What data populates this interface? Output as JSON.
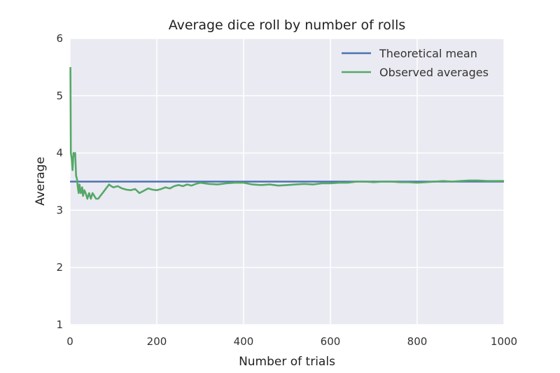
{
  "chart_data": {
    "type": "line",
    "title": "Average dice roll by number of rolls",
    "xlabel": "Number of trials",
    "ylabel": "Average",
    "xlim": [
      0,
      1000
    ],
    "ylim": [
      1,
      6
    ],
    "xticks": [
      0,
      200,
      400,
      600,
      800,
      1000
    ],
    "yticks": [
      1,
      2,
      3,
      4,
      5,
      6
    ],
    "xtick_labels": [
      "0",
      "200",
      "400",
      "600",
      "800",
      "1000"
    ],
    "ytick_labels": [
      "1",
      "2",
      "3",
      "4",
      "5",
      "6"
    ],
    "grid": true,
    "legend": "top-right",
    "series": [
      {
        "name": "Theoretical mean",
        "color": "#4c72b0",
        "x": [
          0,
          1000
        ],
        "y": [
          3.5,
          3.5
        ]
      },
      {
        "name": "Observed averages",
        "color": "#55a868",
        "x": [
          1,
          2,
          4,
          6,
          8,
          10,
          12,
          14,
          16,
          18,
          20,
          22,
          25,
          28,
          30,
          33,
          36,
          40,
          44,
          48,
          52,
          56,
          60,
          65,
          70,
          75,
          80,
          85,
          90,
          95,
          100,
          110,
          120,
          130,
          140,
          150,
          160,
          170,
          180,
          190,
          200,
          210,
          220,
          230,
          240,
          250,
          260,
          270,
          280,
          290,
          300,
          320,
          340,
          360,
          380,
          400,
          420,
          440,
          460,
          480,
          500,
          520,
          540,
          560,
          580,
          600,
          620,
          640,
          660,
          680,
          700,
          720,
          740,
          760,
          780,
          800,
          820,
          840,
          860,
          880,
          900,
          920,
          940,
          960,
          980,
          1000
        ],
        "y": [
          5.5,
          4.0,
          3.9,
          3.7,
          4.0,
          3.95,
          4.0,
          3.6,
          3.55,
          3.4,
          3.3,
          3.45,
          3.3,
          3.4,
          3.25,
          3.35,
          3.3,
          3.2,
          3.3,
          3.2,
          3.3,
          3.25,
          3.2,
          3.2,
          3.25,
          3.3,
          3.35,
          3.4,
          3.45,
          3.42,
          3.4,
          3.42,
          3.38,
          3.36,
          3.35,
          3.37,
          3.3,
          3.34,
          3.38,
          3.36,
          3.35,
          3.37,
          3.4,
          3.38,
          3.42,
          3.44,
          3.42,
          3.45,
          3.43,
          3.46,
          3.48,
          3.46,
          3.45,
          3.47,
          3.48,
          3.48,
          3.45,
          3.44,
          3.45,
          3.43,
          3.44,
          3.45,
          3.46,
          3.45,
          3.47,
          3.47,
          3.48,
          3.48,
          3.5,
          3.5,
          3.49,
          3.5,
          3.5,
          3.49,
          3.49,
          3.48,
          3.49,
          3.5,
          3.51,
          3.5,
          3.51,
          3.52,
          3.52,
          3.51,
          3.51,
          3.51
        ]
      }
    ]
  }
}
